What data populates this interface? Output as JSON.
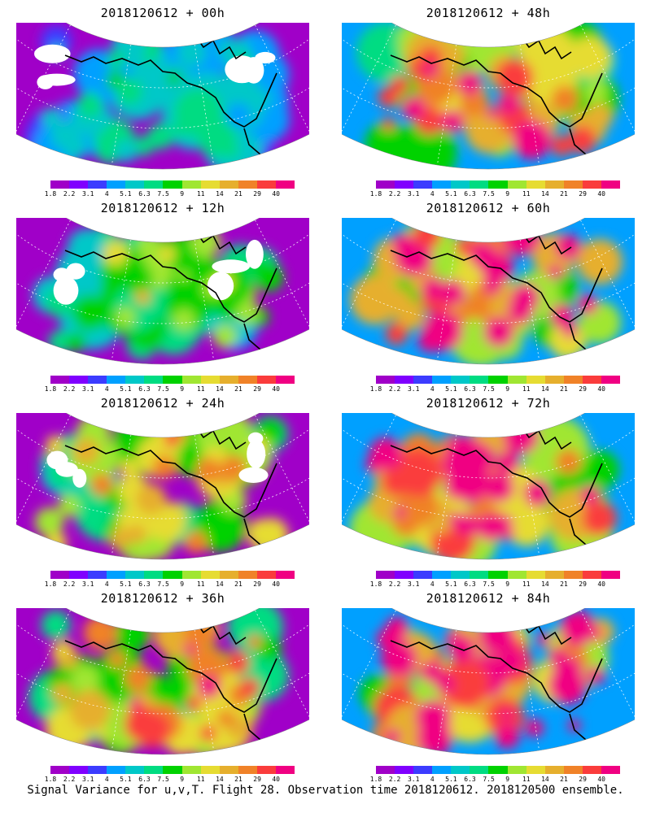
{
  "panels": [
    {
      "title": "2018120612 + 00h",
      "lead": "00h",
      "col": 0,
      "row": 0,
      "intensity": 0.12,
      "white": true
    },
    {
      "title": "2018120612 + 12h",
      "lead": "12h",
      "col": 0,
      "row": 1,
      "intensity": 0.28,
      "white": true
    },
    {
      "title": "2018120612 + 24h",
      "lead": "24h",
      "col": 0,
      "row": 2,
      "intensity": 0.42,
      "white": true
    },
    {
      "title": "2018120612 + 36h",
      "lead": "36h",
      "col": 0,
      "row": 3,
      "intensity": 0.52,
      "white": false
    },
    {
      "title": "2018120612 + 48h",
      "lead": "48h",
      "col": 1,
      "row": 0,
      "intensity": 0.6,
      "white": false
    },
    {
      "title": "2018120612 + 60h",
      "lead": "60h",
      "col": 1,
      "row": 1,
      "intensity": 0.68,
      "white": false
    },
    {
      "title": "2018120612 + 72h",
      "lead": "72h",
      "col": 1,
      "row": 2,
      "intensity": 0.76,
      "white": false
    },
    {
      "title": "2018120612 + 84h",
      "lead": "84h",
      "col": 1,
      "row": 3,
      "intensity": 0.82,
      "white": false
    }
  ],
  "colorbar": {
    "ticks": [
      "1.8",
      "2.2",
      "3.1",
      "4",
      "5.1",
      "6.3",
      "7.5",
      "9",
      "11",
      "14",
      "21",
      "29",
      "40"
    ],
    "colors": [
      "#a000c8",
      "#8000ff",
      "#3c3cff",
      "#00a0ff",
      "#00c8c8",
      "#00dc82",
      "#00d200",
      "#a0e632",
      "#e6dc32",
      "#e6af2d",
      "#f08228",
      "#fa3c3c",
      "#f00082"
    ]
  },
  "caption": "Signal Variance for u,v,T. Flight 28. Observation time 2018120612. 2018120500 ensemble."
}
